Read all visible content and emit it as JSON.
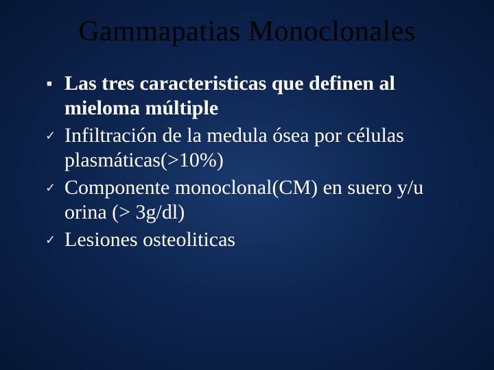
{
  "slide": {
    "title": "Gammapatias Monoclonales",
    "background_gradient": {
      "center": "#1a3a6e",
      "mid": "#0d2550",
      "edge": "#061635"
    },
    "title_color": "#000000",
    "text_color": "#ffffff",
    "title_fontsize": 42,
    "body_fontsize": 30,
    "font_family": "Times New Roman",
    "items": [
      {
        "marker": "square",
        "bold": true,
        "text": "Las tres caracteristicas que definen al mieloma múltiple"
      },
      {
        "marker": "check",
        "bold": false,
        "text": "Infiltración de la medula ósea por células plasmáticas(>10%)"
      },
      {
        "marker": "check",
        "bold": false,
        "text": "Componente monoclonal(CM) en suero y/u orina (> 3g/dl)"
      },
      {
        "marker": "check",
        "bold": false,
        "text": "Lesiones osteoliticas"
      }
    ],
    "markers": {
      "square_glyph": "■",
      "check_glyph": "✓"
    }
  }
}
